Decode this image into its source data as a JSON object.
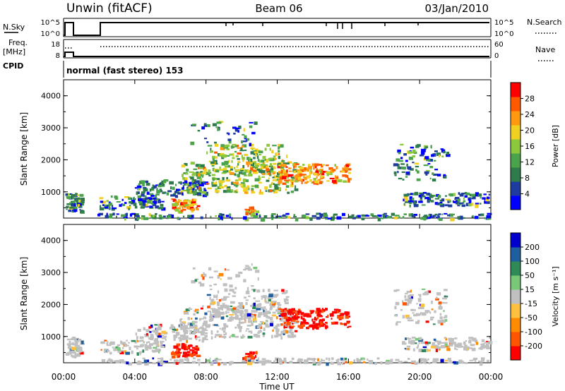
{
  "header": {
    "station": "Unwin (fitACF)",
    "beam": "Beam 06",
    "date": "03/Jan/2010"
  },
  "panel_labels": {
    "nsky": "N.Sky",
    "nsearch": "N.Search",
    "freq_line1": "Freq.",
    "freq_line2": "[MHz]",
    "nave": "Nave",
    "cpid": "CPID",
    "nsky_ticks": [
      "10^5",
      "10^0"
    ],
    "nsearch_ticks": [
      "10^5",
      "10^0"
    ],
    "freq_ticks": [
      "18",
      "8"
    ],
    "nave_ticks": [
      "60",
      "0"
    ]
  },
  "cpid_text": "normal (fast stereo) 153",
  "colors": {
    "power": [
      "#0000ff",
      "#1e3ca0",
      "#2f7b4c",
      "#4aa24a",
      "#8cc83c",
      "#f0d020",
      "#ff9a10",
      "#ff5a00",
      "#ff0000"
    ],
    "velocity": [
      "#ff0000",
      "#ff5500",
      "#ff8c00",
      "#ffc040",
      "#c0c0c0",
      "#78c878",
      "#2e8b57",
      "#1e5f9f",
      "#0000cc"
    ]
  },
  "chart_data": [
    {
      "type": "line",
      "title": "N.Sky / N.Search",
      "x_range": [
        "00:00",
        "24:00"
      ],
      "note_values": "log scale 10^0 to 10^5",
      "ylim": [
        0,
        5
      ],
      "y_scale": "log"
    },
    {
      "type": "line",
      "title": "Freq. / Nave",
      "ylim_left": [
        8,
        18
      ],
      "ylim_right": [
        0,
        60
      ]
    },
    {
      "type": "heatmap",
      "ylabel": "Slant Range [km]",
      "xlabel": "Time UT",
      "xticks": [
        "00:00",
        "04:00",
        "08:00",
        "12:00",
        "16:00",
        "20:00",
        "00:00"
      ],
      "yticks": [
        "1000",
        "2000",
        "3000",
        "4000"
      ],
      "ylim": [
        180,
        4500
      ],
      "colorbar_label": "Power [dB]",
      "colorbar_ticks": [
        "4",
        "8",
        "12",
        "16",
        "20",
        "24",
        "28"
      ],
      "colorbar_range": [
        0,
        32
      ]
    },
    {
      "type": "heatmap",
      "ylabel": "Slant Range [km]",
      "xlabel": "Time UT",
      "xticks": [
        "00:00",
        "04:00",
        "08:00",
        "12:00",
        "16:00",
        "20:00",
        "00:00"
      ],
      "yticks": [
        "1000",
        "2000",
        "3000",
        "4000"
      ],
      "ylim": [
        180,
        4500
      ],
      "colorbar_label": "Velocity [m s⁻¹]",
      "colorbar_ticks": [
        "200",
        "100",
        "50",
        "15",
        "-15",
        "-50",
        "-100",
        "-200"
      ],
      "colorbar_range": [
        -250,
        250
      ]
    }
  ]
}
